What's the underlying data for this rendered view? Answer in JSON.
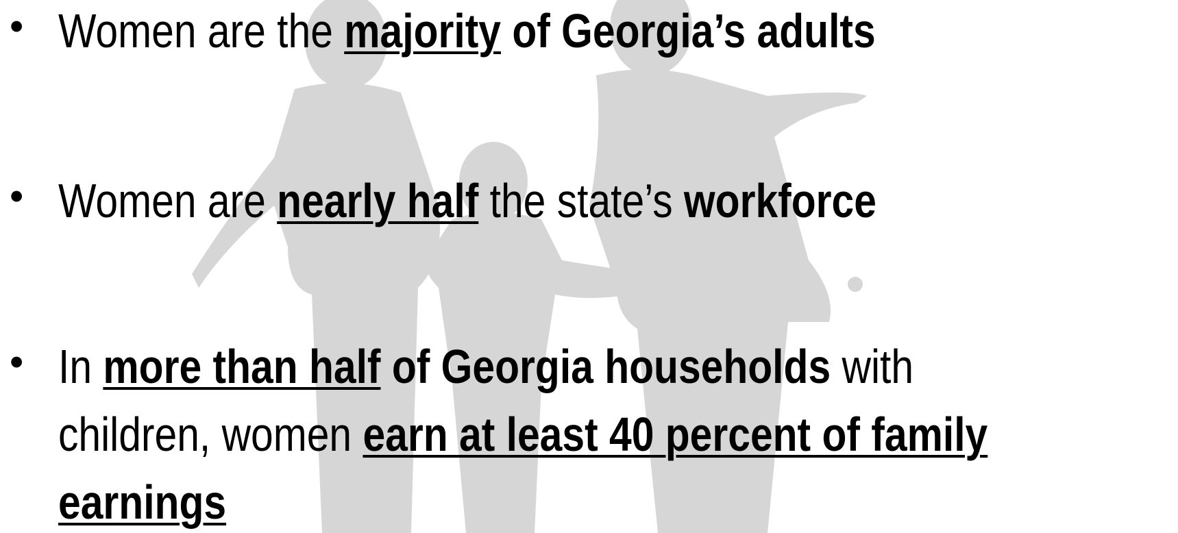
{
  "bullets": [
    {
      "runs": [
        "Women are the ",
        "majority",
        " of Georgia’s adults"
      ]
    },
    {
      "runs": [
        "Women are ",
        "nearly half",
        " the state’s ",
        "workforce"
      ]
    },
    {
      "lines": [
        [
          "In ",
          "more than half",
          " of Georgia households",
          " with"
        ],
        [
          "children, women ",
          "earn at least 40 percent of family"
        ],
        [
          "earnings"
        ]
      ]
    }
  ]
}
